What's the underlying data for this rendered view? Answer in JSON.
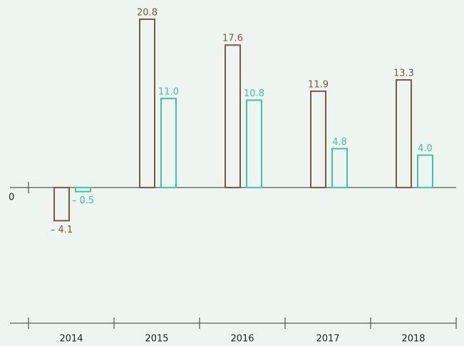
{
  "chart_data": {
    "type": "bar",
    "categories": [
      "2014",
      "2015",
      "2016",
      "2017",
      "2018"
    ],
    "series": [
      {
        "color": "#7b5846",
        "values": [
          -4.1,
          20.8,
          17.6,
          11.9,
          13.3
        ],
        "value_labels": [
          "– 4.1",
          "20.8",
          "17.6",
          "11.9",
          "13.3"
        ]
      },
      {
        "color": "#3ec4a6",
        "values": [
          -0.5,
          11.0,
          10.8,
          4.8,
          4.0
        ],
        "value_labels": [
          "– 0.5",
          "11.0",
          "10.8",
          "4.8",
          "4.0"
        ]
      }
    ],
    "ylim": [
      -15,
      23
    ],
    "yticks": [
      0
    ],
    "grid": false
  }
}
